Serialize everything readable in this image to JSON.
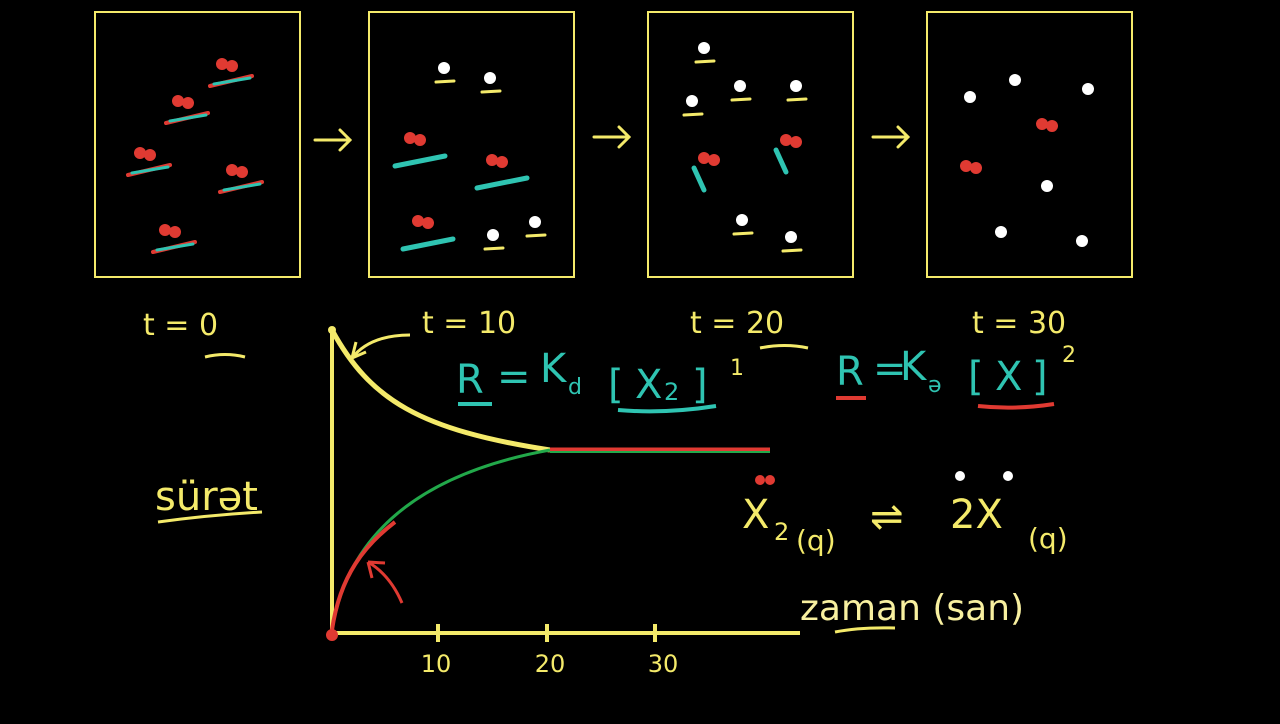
{
  "panels": [
    {
      "label": "t = 0"
    },
    {
      "label": "t = 10"
    },
    {
      "label": "t = 20"
    },
    {
      "label": "t = 30"
    }
  ],
  "graph": {
    "y_label": "sürət",
    "x_label": "zaman (san)",
    "x_ticks": [
      "10",
      "20",
      "30"
    ]
  },
  "rate_laws": [
    {
      "rate": "R",
      "equals": "=",
      "k": "K",
      "k_sub": "d",
      "open": "[",
      "species": "X",
      "species_sub": "2",
      "close": "]",
      "order": "1"
    },
    {
      "rate": "R",
      "equals": "=",
      "k": "K",
      "k_sub": "ə",
      "open": "[",
      "species": "X",
      "close": "]",
      "order": "2"
    }
  ],
  "reaction": {
    "reactant": "X",
    "reactant_sub": "2",
    "reactant_state": "(q)",
    "arrow": "⇌",
    "product": "2X",
    "product_state": "(q)"
  }
}
